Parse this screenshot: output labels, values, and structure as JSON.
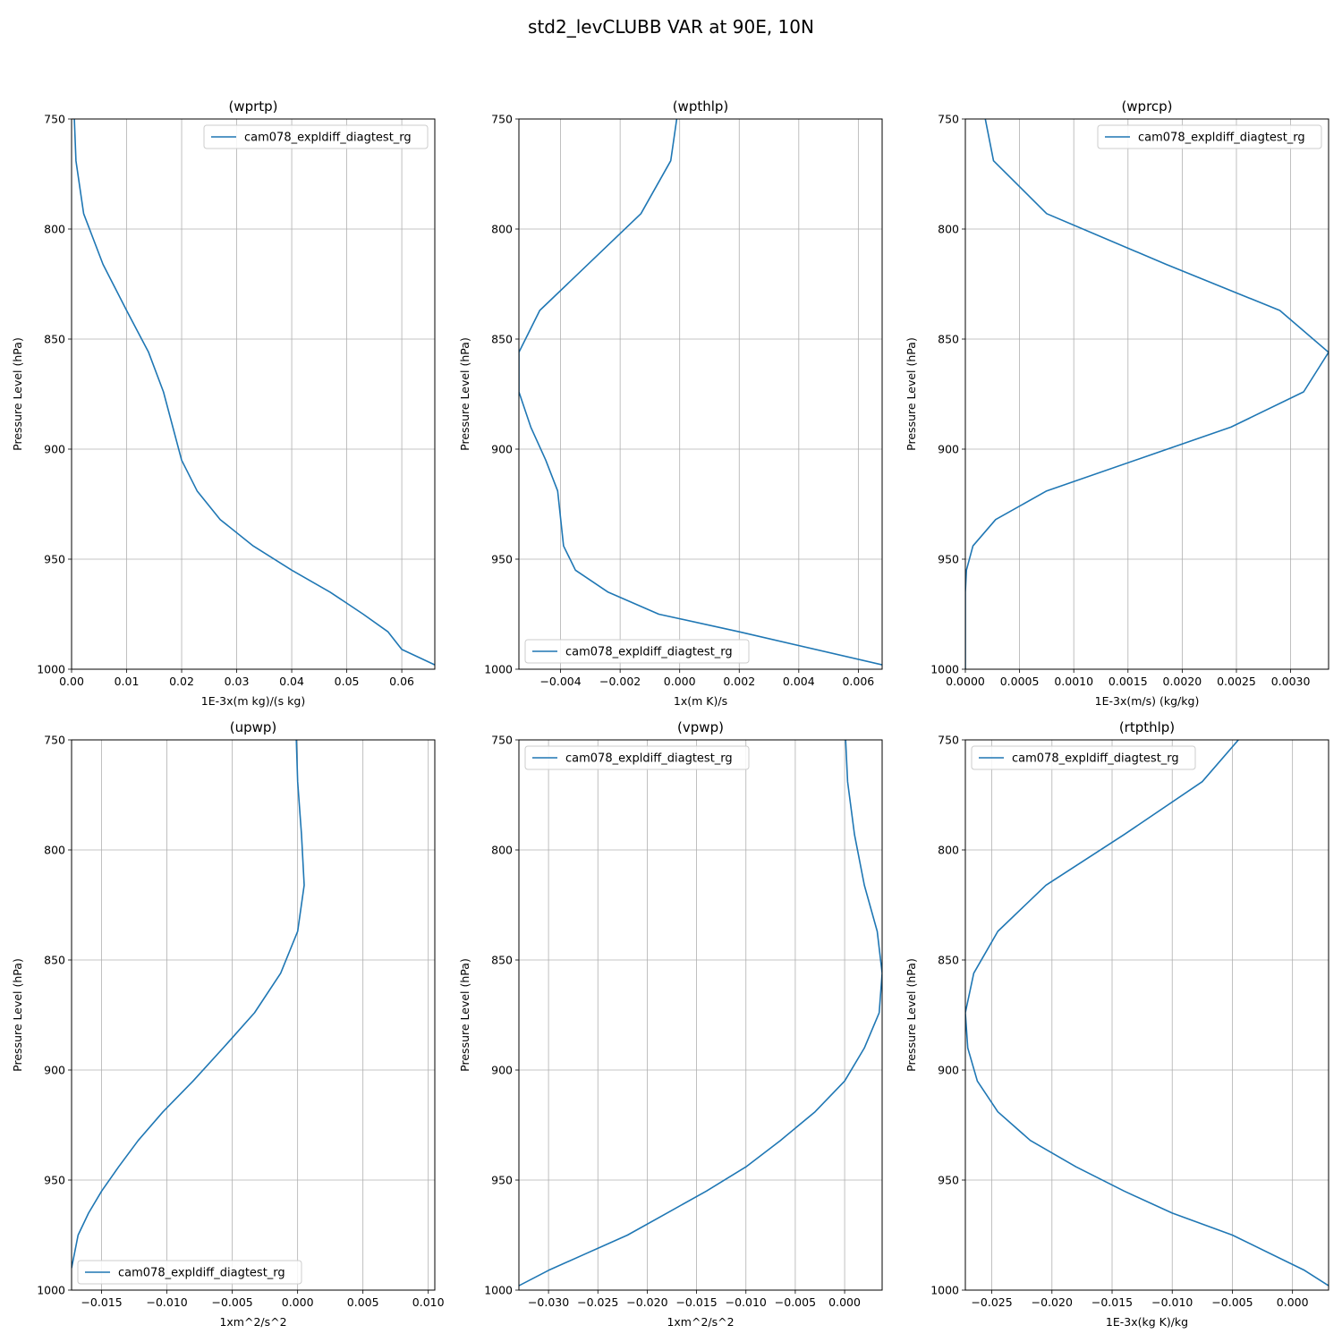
{
  "figure": {
    "title": "std2_levCLUBB VAR at 90E, 10N"
  },
  "colors": {
    "line": "#1f77b4",
    "grid": "#b0b0b0",
    "axis": "#000000",
    "legend_edge": "#cccccc"
  },
  "chart_data": [
    {
      "type": "line",
      "title": "(wprtp)",
      "xlabel": "1E-3x(m kg)/(s kg)",
      "ylabel": "Pressure Level (hPa)",
      "xlim": [
        0.0,
        0.066
      ],
      "ylim": [
        1000,
        750
      ],
      "xticks": [
        0.0,
        0.01,
        0.02,
        0.03,
        0.04,
        0.05,
        0.06
      ],
      "xticklabels": [
        "0.00",
        "0.01",
        "0.02",
        "0.03",
        "0.04",
        "0.05",
        "0.06"
      ],
      "yticks": [
        750,
        800,
        850,
        900,
        950,
        1000
      ],
      "yticklabels": [
        "750",
        "800",
        "850",
        "900",
        "950",
        "1000"
      ],
      "grid": true,
      "legend_loc": "upper right",
      "series": [
        {
          "name": "cam078_expldiff_diagtest_rg",
          "x": [
            0.0005,
            0.0008,
            0.0022,
            0.0057,
            0.01,
            0.014,
            0.0167,
            0.02,
            0.0228,
            0.027,
            0.033,
            0.04,
            0.047,
            0.053,
            0.0575,
            0.06,
            0.066
          ],
          "y": [
            750,
            769,
            793,
            816,
            837,
            856,
            874,
            905,
            919,
            932,
            944,
            955,
            965,
            975,
            983,
            991,
            998
          ]
        }
      ]
    },
    {
      "type": "line",
      "title": "(wpthlp)",
      "xlabel": "1x(m K)/s",
      "ylabel": "Pressure Level (hPa)",
      "xlim": [
        -0.0054,
        0.0068
      ],
      "ylim": [
        1000,
        750
      ],
      "xticks": [
        -0.004,
        -0.002,
        0.0,
        0.002,
        0.004,
        0.006
      ],
      "xticklabels": [
        "−0.004",
        "−0.002",
        "0.000",
        "0.002",
        "0.004",
        "0.006"
      ],
      "yticks": [
        750,
        800,
        850,
        900,
        950,
        1000
      ],
      "yticklabels": [
        "750",
        "800",
        "850",
        "900",
        "950",
        "1000"
      ],
      "grid": true,
      "legend_loc": "lower left",
      "series": [
        {
          "name": "cam078_expldiff_diagtest_rg",
          "x": [
            -0.0001,
            -0.0003,
            -0.0013,
            -0.0047,
            -0.0054,
            -0.0054,
            -0.005,
            -0.0045,
            -0.0041,
            -0.0039,
            -0.0035,
            -0.0024,
            -0.0007,
            0.002,
            0.0068
          ],
          "y": [
            750,
            769,
            793,
            837,
            856,
            874,
            890,
            905,
            919,
            944,
            955,
            965,
            975,
            983,
            998
          ]
        }
      ]
    },
    {
      "type": "line",
      "title": "(wprcp)",
      "xlabel": "1E-3x(m/s) (kg/kg)",
      "ylabel": "Pressure Level (hPa)",
      "xlim": [
        0.0,
        0.00335
      ],
      "ylim": [
        1000,
        750
      ],
      "xticks": [
        0.0,
        0.0005,
        0.001,
        0.0015,
        0.002,
        0.0025,
        0.003
      ],
      "xticklabels": [
        "0.0000",
        "0.0005",
        "0.0010",
        "0.0015",
        "0.0020",
        "0.0025",
        "0.0030"
      ],
      "yticks": [
        750,
        800,
        850,
        900,
        950,
        1000
      ],
      "yticklabels": [
        "750",
        "800",
        "850",
        "900",
        "950",
        "1000"
      ],
      "grid": true,
      "legend_loc": "upper right",
      "series": [
        {
          "name": "cam078_expldiff_diagtest_rg",
          "x": [
            0.00018,
            0.00026,
            0.00075,
            0.00185,
            0.0029,
            0.00335,
            0.00312,
            0.00245,
            0.00075,
            0.00028,
            7e-05,
            1e-05,
            0.0,
            0.0,
            0.0
          ],
          "y": [
            749,
            769,
            793,
            816,
            837,
            856,
            874,
            890,
            919,
            932,
            944,
            955,
            965,
            983,
            1000
          ]
        }
      ]
    },
    {
      "type": "line",
      "title": "(upwp)",
      "xlabel": "1xm^2/s^2",
      "ylabel": "Pressure Level (hPa)",
      "xlim": [
        -0.0173,
        0.0105
      ],
      "ylim": [
        1000,
        750
      ],
      "xticks": [
        -0.015,
        -0.01,
        -0.005,
        0.0,
        0.005,
        0.01
      ],
      "xticklabels": [
        "−0.015",
        "−0.010",
        "−0.005",
        "0.000",
        "0.005",
        "0.010"
      ],
      "yticks": [
        750,
        800,
        850,
        900,
        950,
        1000
      ],
      "yticklabels": [
        "750",
        "800",
        "850",
        "900",
        "950",
        "1000"
      ],
      "grid": true,
      "legend_loc": "lower left",
      "series": [
        {
          "name": "cam078_expldiff_diagtest_rg",
          "x": [
            -0.0001,
            0.0,
            0.0003,
            0.0005,
            0.0,
            -0.0013,
            -0.0033,
            -0.0057,
            -0.008,
            -0.0103,
            -0.0122,
            -0.0137,
            -0.015,
            -0.016,
            -0.0168,
            -0.0173
          ],
          "y": [
            750,
            769,
            793,
            816,
            837,
            856,
            874,
            890,
            905,
            919,
            932,
            944,
            955,
            965,
            975,
            990
          ]
        }
      ]
    },
    {
      "type": "line",
      "title": "(vpwp)",
      "xlabel": "1xm^2/s^2",
      "ylabel": "Pressure Level (hPa)",
      "xlim": [
        -0.033,
        0.0038
      ],
      "ylim": [
        1000,
        750
      ],
      "xticks": [
        -0.03,
        -0.025,
        -0.02,
        -0.015,
        -0.01,
        -0.005,
        0.0
      ],
      "xticklabels": [
        "−0.030",
        "−0.025",
        "−0.020",
        "−0.015",
        "−0.010",
        "−0.005",
        "0.000"
      ],
      "yticks": [
        750,
        800,
        850,
        900,
        950,
        1000
      ],
      "yticklabels": [
        "750",
        "800",
        "850",
        "900",
        "950",
        "1000"
      ],
      "grid": true,
      "legend_loc": "upper left",
      "series": [
        {
          "name": "cam078_expldiff_diagtest_rg",
          "x": [
            0.0001,
            0.0003,
            0.001,
            0.002,
            0.0033,
            0.0038,
            0.0035,
            0.002,
            0.0,
            -0.003,
            -0.0065,
            -0.01,
            -0.014,
            -0.018,
            -0.022,
            -0.026,
            -0.03,
            -0.033
          ],
          "y": [
            750,
            769,
            793,
            816,
            837,
            856,
            874,
            890,
            905,
            919,
            932,
            944,
            955,
            965,
            975,
            983,
            991,
            998
          ]
        }
      ]
    },
    {
      "type": "line",
      "title": "(rtpthlp)",
      "xlabel": "1E-3x(kg K)/kg",
      "ylabel": "Pressure Level (hPa)",
      "xlim": [
        -0.0272,
        0.003
      ],
      "ylim": [
        1000,
        750
      ],
      "xticks": [
        -0.025,
        -0.02,
        -0.015,
        -0.01,
        -0.005,
        0.0
      ],
      "xticklabels": [
        "−0.025",
        "−0.020",
        "−0.015",
        "−0.010",
        "−0.005",
        "0.000"
      ],
      "yticks": [
        750,
        800,
        850,
        900,
        950,
        1000
      ],
      "yticklabels": [
        "750",
        "800",
        "850",
        "900",
        "950",
        "1000"
      ],
      "grid": true,
      "legend_loc": "upper left",
      "series": [
        {
          "name": "cam078_expldiff_diagtest_rg",
          "x": [
            -0.0045,
            -0.0075,
            -0.014,
            -0.0205,
            -0.0245,
            -0.0265,
            -0.0272,
            -0.027,
            -0.0262,
            -0.0245,
            -0.0218,
            -0.018,
            -0.014,
            -0.01,
            -0.005,
            0.001,
            0.003
          ],
          "y": [
            750,
            769,
            793,
            816,
            837,
            856,
            874,
            890,
            905,
            919,
            932,
            944,
            955,
            965,
            975,
            991,
            998
          ]
        }
      ]
    }
  ]
}
